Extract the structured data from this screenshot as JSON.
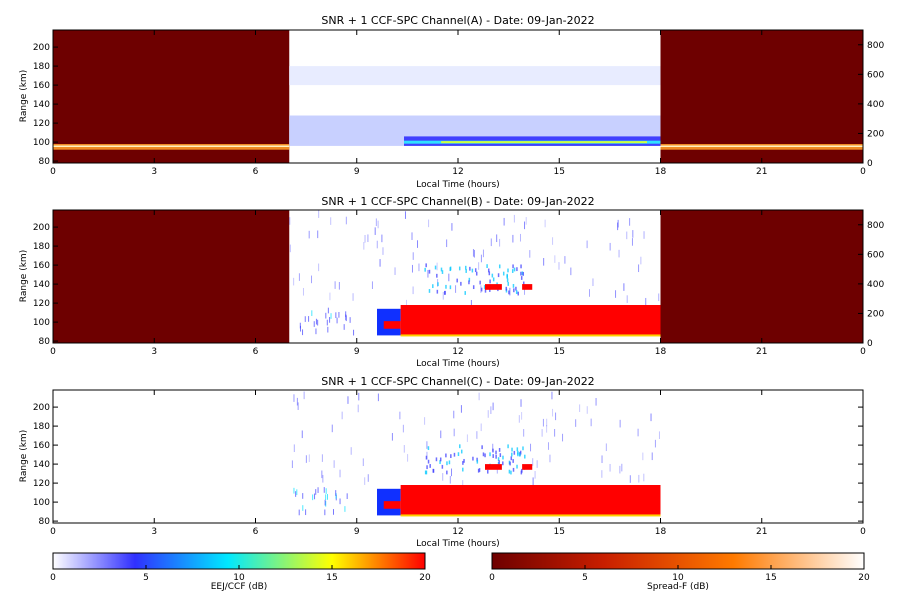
{
  "colors": {
    "background": "#ffffff",
    "spread_f_dark": "#6e0000",
    "spread_f_mid": "#c81e00",
    "spread_f_bright": "#ff9b28",
    "eej_high": "#ff0000",
    "eej_mid": "#4040ff",
    "eej_low": "#e8ecff"
  },
  "chart_data": [
    {
      "type": "heatmap",
      "title": "SNR + 1 CCF-SPC Channel(A) - Date: 09-Jan-2022",
      "xlabel": "Local Time (hours)",
      "ylabel": "Range (km)",
      "x_ticks": [
        "0",
        "3",
        "6",
        "9",
        "12",
        "15",
        "18",
        "21",
        "0"
      ],
      "xlim": [
        0,
        24
      ],
      "y_ticks": [
        "80",
        "100",
        "120",
        "140",
        "160",
        "180",
        "200"
      ],
      "ylim": [
        78,
        218
      ],
      "right_y_ticks": [
        "0",
        "200",
        "400",
        "600",
        "800"
      ],
      "right_ylim": [
        0,
        900
      ],
      "nighttime_hours": [
        [
          0,
          7
        ],
        [
          18,
          24
        ]
      ],
      "daytime_hours": [
        7,
        18
      ],
      "nighttime_layer_range_km": [
        92,
        98
      ],
      "daytime_layer_range_km": [
        96,
        106
      ]
    },
    {
      "type": "heatmap",
      "title": "SNR + 1 CCF-SPC Channel(B) - Date: 09-Jan-2022",
      "xlabel": "Local Time (hours)",
      "ylabel": "Range (km)",
      "x_ticks": [
        "0",
        "3",
        "6",
        "9",
        "12",
        "15",
        "18",
        "21",
        "0"
      ],
      "xlim": [
        0,
        24
      ],
      "y_ticks": [
        "80",
        "100",
        "120",
        "140",
        "160",
        "180",
        "200"
      ],
      "ylim": [
        78,
        218
      ],
      "right_y_ticks": [
        "0",
        "200",
        "400",
        "600",
        "800"
      ],
      "right_ylim": [
        0,
        900
      ],
      "nighttime_hours": [
        [
          0,
          7
        ],
        [
          18,
          24
        ]
      ],
      "daytime_hours": [
        7,
        18
      ],
      "strong_echo_hours": [
        9.6,
        18
      ],
      "strong_echo_range_km": [
        86,
        118
      ]
    },
    {
      "type": "heatmap",
      "title": "SNR + 1 CCF-SPC Channel(C) - Date: 09-Jan-2022",
      "xlabel": "Local Time (hours)",
      "ylabel": "Range (km)",
      "x_ticks": [
        "0",
        "3",
        "6",
        "9",
        "12",
        "15",
        "18",
        "21",
        "0"
      ],
      "xlim": [
        0,
        24
      ],
      "y_ticks": [
        "80",
        "100",
        "120",
        "140",
        "160",
        "180",
        "200"
      ],
      "ylim": [
        78,
        218
      ],
      "daytime_hours": [
        7,
        18
      ],
      "strong_echo_hours": [
        9.6,
        18
      ],
      "strong_echo_range_km": [
        86,
        118
      ]
    }
  ],
  "colorbars": [
    {
      "label": "EEJ/CCF (dB)",
      "ticks": [
        "0",
        "5",
        "10",
        "15",
        "20"
      ],
      "range": [
        0,
        20
      ],
      "stops": [
        "#ffffff",
        "#3030ff",
        "#00e8ff",
        "#ffff00",
        "#ff0000"
      ]
    },
    {
      "label": "Spread-F (dB)",
      "ticks": [
        "0",
        "5",
        "10",
        "15",
        "20"
      ],
      "range": [
        0,
        20
      ],
      "stops": [
        "#6e0000",
        "#c81e00",
        "#ff7a00",
        "#ffffff"
      ]
    }
  ]
}
